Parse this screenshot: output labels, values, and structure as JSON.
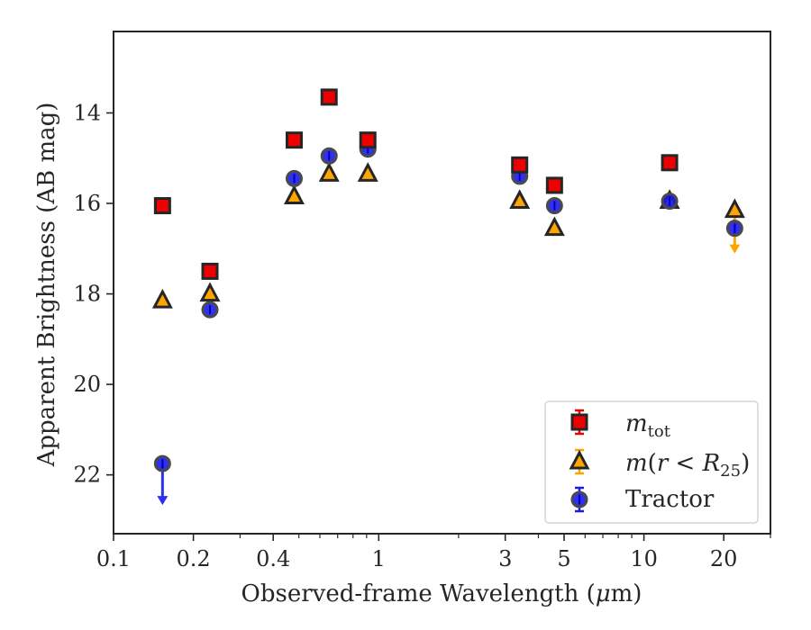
{
  "chart_data": {
    "type": "scatter",
    "xlabel_prefix": "Observed-frame Wavelength (",
    "xlabel_unit_mu": "μ",
    "xlabel_unit_rest": "m)",
    "ylabel": "Apparent Brightness (AB mag)",
    "xscale": "log",
    "xlim": [
      0.1,
      30
    ],
    "ylim": [
      23.3,
      12.2
    ],
    "y_inverted": true,
    "grid": false,
    "legend_position": "lower-right",
    "x_ticks": [
      {
        "value": 0.1,
        "label": "0.1"
      },
      {
        "value": 0.2,
        "label": "0.2"
      },
      {
        "value": 0.4,
        "label": "0.4"
      },
      {
        "value": 1,
        "label": "1"
      },
      {
        "value": 3,
        "label": "3"
      },
      {
        "value": 5,
        "label": "5"
      },
      {
        "value": 10,
        "label": "10"
      },
      {
        "value": 20,
        "label": "20"
      }
    ],
    "x_minor_ticks": [
      0.3,
      0.5,
      0.6,
      0.7,
      0.8,
      0.9,
      2,
      4,
      6,
      7,
      8,
      9,
      30
    ],
    "y_ticks": [
      {
        "value": 14,
        "label": "14"
      },
      {
        "value": 16,
        "label": "16"
      },
      {
        "value": 18,
        "label": "18"
      },
      {
        "value": 20,
        "label": "20"
      },
      {
        "value": 22,
        "label": "22"
      }
    ],
    "series": [
      {
        "name_main": "m",
        "name_sub": "tot",
        "marker": "square",
        "color": "#ee0000",
        "edge": "#262626",
        "points": [
          {
            "x": 0.153,
            "y": 16.05
          },
          {
            "x": 0.231,
            "y": 17.5
          },
          {
            "x": 0.48,
            "y": 14.6
          },
          {
            "x": 0.65,
            "y": 13.65
          },
          {
            "x": 0.91,
            "y": 14.6
          },
          {
            "x": 3.4,
            "y": 15.15
          },
          {
            "x": 4.6,
            "y": 15.6
          },
          {
            "x": 12.5,
            "y": 15.1
          }
        ]
      },
      {
        "name_main": "m",
        "name_sub": "25",
        "marker": "triangle",
        "color": "#ffa500",
        "edge": "#262626",
        "points": [
          {
            "x": 0.153,
            "y": 18.15
          },
          {
            "x": 0.231,
            "y": 18.0
          },
          {
            "x": 0.48,
            "y": 15.85
          },
          {
            "x": 0.65,
            "y": 15.35
          },
          {
            "x": 0.91,
            "y": 15.35
          },
          {
            "x": 3.4,
            "y": 15.95
          },
          {
            "x": 4.6,
            "y": 16.55
          },
          {
            "x": 12.5,
            "y": 15.95
          },
          {
            "x": 22,
            "y": 16.15,
            "upper_limit": true
          }
        ]
      },
      {
        "name": "Tractor",
        "marker": "circle",
        "color": "#1a1aee",
        "edge": "#262626",
        "points": [
          {
            "x": 0.153,
            "y": 21.75,
            "upper_limit": true
          },
          {
            "x": 0.231,
            "y": 18.35
          },
          {
            "x": 0.48,
            "y": 15.45
          },
          {
            "x": 0.65,
            "y": 14.95
          },
          {
            "x": 0.91,
            "y": 14.8
          },
          {
            "x": 3.4,
            "y": 15.4
          },
          {
            "x": 4.6,
            "y": 16.05
          },
          {
            "x": 12.5,
            "y": 15.95
          },
          {
            "x": 22,
            "y": 16.55
          }
        ]
      }
    ]
  }
}
